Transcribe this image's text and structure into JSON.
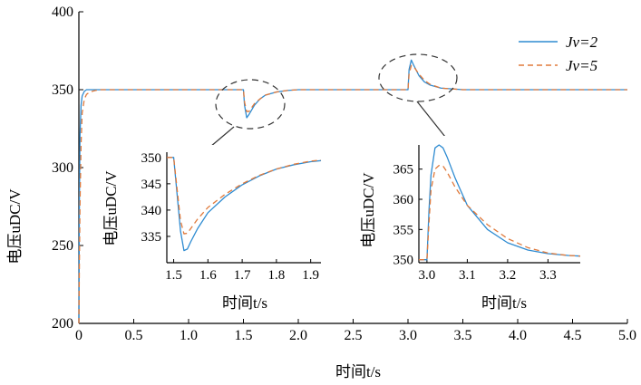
{
  "chart_data": [
    {
      "type": "line",
      "xlabel": "时间t/s",
      "ylabel": "电压uDC/V",
      "xlim": [
        0,
        5.0
      ],
      "ylim": [
        200,
        400
      ],
      "xticks": [
        "0",
        "0.5",
        "1.0",
        "1.5",
        "2.0",
        "2.5",
        "3.0",
        "3.5",
        "4.0",
        "4.5",
        "5.0"
      ],
      "yticks": [
        "200",
        "250",
        "300",
        "350",
        "400"
      ],
      "legend_position": "top-right",
      "series": [
        {
          "name": "Jv=2",
          "color": "#2e8bd1",
          "dash": "solid",
          "x": [
            0,
            0.005,
            0.01,
            0.02,
            0.03,
            0.05,
            0.07,
            0.1,
            0.15,
            0.3,
            1.5,
            1.51,
            1.53,
            1.55,
            1.6,
            1.65,
            1.7,
            1.8,
            1.9,
            2.0,
            2.2,
            3.0,
            3.01,
            3.03,
            3.05,
            3.1,
            3.15,
            3.2,
            3.3,
            3.5,
            5.0
          ],
          "y": [
            200,
            280,
            320,
            340,
            346,
            349,
            350,
            350,
            350,
            350,
            350,
            340,
            332,
            334,
            340,
            344,
            346.5,
            348.5,
            349.5,
            350,
            350,
            350,
            363,
            369,
            366,
            359,
            355,
            353,
            351,
            350,
            350
          ]
        },
        {
          "name": "Jv=5",
          "color": "#e07a3c",
          "dash": "dashed",
          "x": [
            0,
            0.005,
            0.01,
            0.02,
            0.03,
            0.05,
            0.07,
            0.1,
            0.15,
            0.2,
            0.3,
            1.5,
            1.51,
            1.53,
            1.55,
            1.6,
            1.65,
            1.7,
            1.8,
            1.9,
            2.0,
            2.2,
            3.0,
            3.01,
            3.03,
            3.05,
            3.1,
            3.15,
            3.2,
            3.3,
            3.5,
            5.0
          ],
          "y": [
            200,
            240,
            275,
            315,
            335,
            344,
            347,
            348.5,
            349.5,
            350,
            350,
            350,
            342,
            336,
            336,
            341,
            344,
            346.5,
            348.5,
            349.5,
            350,
            350,
            350,
            360,
            365.5,
            365,
            360,
            356,
            353.5,
            351,
            350,
            350
          ]
        }
      ]
    },
    {
      "type": "line",
      "xlabel": "时间t/s",
      "ylabel": "电压uDC/V",
      "xlim": [
        1.48,
        1.93
      ],
      "ylim": [
        330,
        351
      ],
      "xticks": [
        "1.5",
        "1.6",
        "1.7",
        "1.8",
        "1.9"
      ],
      "yticks": [
        "335",
        "340",
        "345",
        "350"
      ],
      "series": [
        {
          "name": "Jv=2",
          "x": [
            1.48,
            1.49,
            1.5,
            1.51,
            1.52,
            1.53,
            1.54,
            1.55,
            1.57,
            1.6,
            1.65,
            1.7,
            1.75,
            1.8,
            1.85,
            1.9,
            1.93
          ],
          "y": [
            350,
            350,
            350,
            343,
            336,
            332.3,
            332.6,
            334,
            336.5,
            339.5,
            342.5,
            344.8,
            346.5,
            347.8,
            348.6,
            349.2,
            349.4
          ]
        },
        {
          "name": "Jv=5",
          "x": [
            1.48,
            1.49,
            1.5,
            1.51,
            1.52,
            1.53,
            1.54,
            1.55,
            1.57,
            1.6,
            1.65,
            1.7,
            1.75,
            1.8,
            1.85,
            1.9,
            1.93
          ],
          "y": [
            350,
            350,
            350,
            344,
            338,
            335.5,
            335.6,
            336.5,
            338.3,
            340.5,
            343,
            345,
            346.6,
            347.8,
            348.7,
            349.3,
            349.5
          ]
        }
      ]
    },
    {
      "type": "line",
      "xlabel": "时间t/s",
      "ylabel": "电压uDC/V",
      "xlim": [
        2.98,
        3.38
      ],
      "ylim": [
        349.5,
        369
      ],
      "xticks": [
        "3.0",
        "3.1",
        "3.2",
        "3.3"
      ],
      "yticks": [
        "350",
        "355",
        "360",
        "365"
      ],
      "series": [
        {
          "name": "Jv=2",
          "x": [
            2.98,
            2.99,
            3.0,
            3.005,
            3.01,
            3.02,
            3.03,
            3.04,
            3.05,
            3.07,
            3.1,
            3.15,
            3.2,
            3.25,
            3.3,
            3.35,
            3.38
          ],
          "y": [
            350,
            350,
            350,
            358,
            364,
            368.5,
            369,
            368.5,
            367,
            363.5,
            359,
            355,
            352.8,
            351.6,
            351,
            350.7,
            350.6
          ]
        },
        {
          "name": "Jv=5",
          "x": [
            2.98,
            2.99,
            3.0,
            3.005,
            3.01,
            3.02,
            3.03,
            3.04,
            3.05,
            3.07,
            3.1,
            3.15,
            3.2,
            3.25,
            3.3,
            3.35,
            3.38
          ],
          "y": [
            350,
            350,
            350,
            356,
            361.5,
            365,
            365.6,
            365.5,
            364.5,
            362,
            359,
            355.8,
            353.5,
            352,
            351.1,
            350.7,
            350.6
          ]
        }
      ]
    }
  ]
}
